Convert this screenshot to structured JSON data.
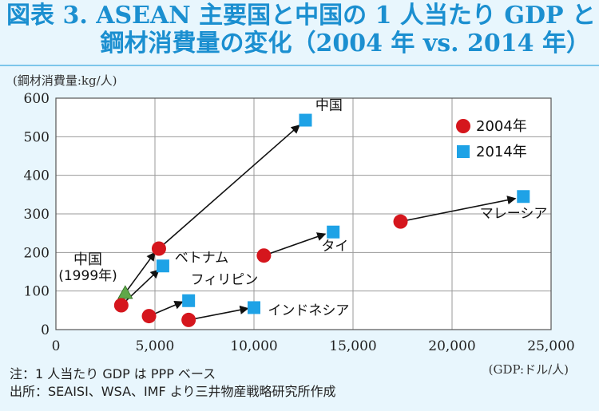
{
  "title": {
    "line1": "図表 3. ASEAN 主要国と中国の 1 人当たり GDP と",
    "line2": "鋼材消費量の変化（2004 年 vs. 2014 年）"
  },
  "colors": {
    "title": "#1b8fd0",
    "background": "#e8f6fd",
    "series_2004": "#d5161d",
    "series_2014": "#1ea2e6",
    "china_1999": "#5fa849"
  },
  "chart_data": {
    "type": "scatter",
    "ylabel": "(鋼材消費量:kg/人)",
    "xlabel": "(GDP:ドル/人)",
    "xlim": [
      0,
      25000
    ],
    "ylim": [
      0,
      600
    ],
    "x_ticks": [
      "0",
      "5,000",
      "10,000",
      "15,000",
      "20,000",
      "25,000"
    ],
    "x_tick_values": [
      0,
      5000,
      10000,
      15000,
      20000,
      25000
    ],
    "y_ticks": [
      "0",
      "100",
      "200",
      "300",
      "400",
      "500",
      "600"
    ],
    "y_tick_values": [
      0,
      100,
      200,
      300,
      400,
      500,
      600
    ],
    "grid": true,
    "legend_position": "top-right",
    "series": [
      {
        "name": "2004年",
        "marker": "circle",
        "color": "#d5161d",
        "points": [
          {
            "country": "中国",
            "x": 5200,
            "y": 210
          },
          {
            "country": "ベトナム",
            "x": 3300,
            "y": 63
          },
          {
            "country": "フィリピン",
            "x": 4700,
            "y": 35
          },
          {
            "country": "インドネシア",
            "x": 6700,
            "y": 25
          },
          {
            "country": "タイ",
            "x": 10500,
            "y": 192
          },
          {
            "country": "マレーシア",
            "x": 17400,
            "y": 280
          }
        ]
      },
      {
        "name": "2014年",
        "marker": "square",
        "color": "#1ea2e6",
        "points": [
          {
            "country": "中国",
            "x": 12600,
            "y": 543
          },
          {
            "country": "ベトナム",
            "x": 5400,
            "y": 165
          },
          {
            "country": "フィリピン",
            "x": 6700,
            "y": 75
          },
          {
            "country": "インドネシア",
            "x": 10000,
            "y": 57
          },
          {
            "country": "タイ",
            "x": 14000,
            "y": 253
          },
          {
            "country": "マレーシア",
            "x": 23600,
            "y": 345
          }
        ]
      }
    ],
    "extra_point": {
      "label": "中国\n(1999年)",
      "x": 3500,
      "y": 95,
      "marker": "triangle",
      "color": "#5fa849"
    },
    "arrows": [
      {
        "from": [
          3500,
          95
        ],
        "to": [
          5000,
          200
        ]
      },
      {
        "from": [
          5200,
          210
        ],
        "to": [
          12300,
          530
        ]
      },
      {
        "from": [
          3300,
          63
        ],
        "to": [
          5200,
          155
        ]
      },
      {
        "from": [
          4700,
          35
        ],
        "to": [
          6400,
          72
        ]
      },
      {
        "from": [
          6700,
          25
        ],
        "to": [
          9700,
          55
        ]
      },
      {
        "from": [
          10500,
          192
        ],
        "to": [
          13600,
          248
        ]
      },
      {
        "from": [
          17400,
          280
        ],
        "to": [
          23200,
          340
        ]
      }
    ],
    "labels": [
      {
        "text": "中国",
        "x": 13100,
        "y": 570
      },
      {
        "text": "ベトナム",
        "x": 6000,
        "y": 175
      },
      {
        "text": "フィリピン",
        "x": 6800,
        "y": 118
      },
      {
        "text": "インドネシア",
        "x": 10700,
        "y": 38
      },
      {
        "text": "タイ",
        "x": 13400,
        "y": 205
      },
      {
        "text": "マレーシア",
        "x": 21400,
        "y": 290
      }
    ],
    "china_1999_label": [
      "中国",
      "(1999年)"
    ]
  },
  "footer": {
    "note": "注：1 人当たり GDP は PPP ベース",
    "source": "出所：SEAISI、WSA、IMF より三井物産戦略研究所作成"
  }
}
